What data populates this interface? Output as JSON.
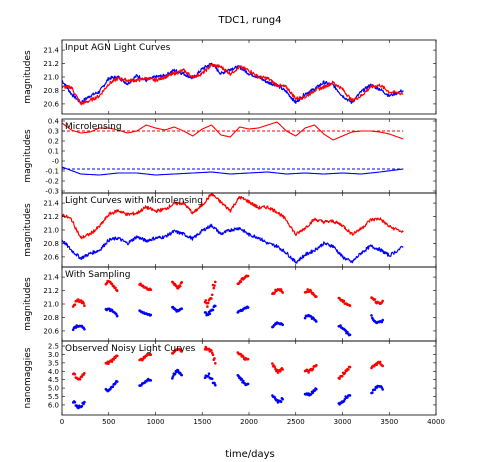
{
  "figure": {
    "title": "TDC1, rung4",
    "xlabel": "time/days"
  },
  "colors": {
    "image_a": "#0000ff",
    "image_b": "#ff0000",
    "axes": "#000000",
    "background": "#ffffff"
  },
  "chart_data": [
    {
      "type": "line",
      "title": "Input AGN Light Curves",
      "ylabel": "magnitudes",
      "xlim": [
        0,
        4000
      ],
      "ylim": [
        21.55,
        20.45
      ],
      "xticks": [],
      "yticks": [
        {
          "v": 20.6,
          "label": "20.6"
        },
        {
          "v": 20.8,
          "label": "20.8"
        },
        {
          "v": 21.0,
          "label": "21.0"
        },
        {
          "v": 21.2,
          "label": "21.2"
        },
        {
          "v": 21.4,
          "label": "21.4"
        }
      ],
      "series": [
        {
          "color": "#0000ff",
          "x": [
            0,
            100,
            200,
            300,
            400,
            500,
            600,
            700,
            800,
            900,
            1000,
            1100,
            1200,
            1300,
            1400,
            1500,
            1600,
            1700,
            1800,
            1900,
            2000,
            2100,
            2200,
            2300,
            2400,
            2500,
            2600,
            2700,
            2800,
            2900,
            3000,
            3100,
            3200,
            3300,
            3400,
            3500,
            3650
          ],
          "y": [
            20.95,
            20.75,
            20.62,
            20.72,
            20.78,
            20.98,
            21.0,
            20.9,
            21.02,
            20.95,
            21.0,
            21.02,
            21.1,
            21.05,
            20.98,
            21.12,
            21.2,
            21.05,
            21.12,
            21.15,
            21.05,
            21.0,
            20.92,
            20.88,
            20.78,
            20.62,
            20.75,
            20.82,
            20.92,
            20.88,
            20.72,
            20.62,
            20.78,
            20.88,
            20.82,
            20.72,
            20.8
          ]
        },
        {
          "color": "#ff0000",
          "x": [
            0,
            100,
            200,
            300,
            400,
            500,
            600,
            700,
            800,
            900,
            1000,
            1100,
            1200,
            1300,
            1400,
            1500,
            1600,
            1700,
            1800,
            1900,
            2000,
            2100,
            2200,
            2300,
            2400,
            2500,
            2600,
            2700,
            2800,
            2900,
            3000,
            3100,
            3200,
            3300,
            3400,
            3500,
            3650
          ],
          "y": [
            20.85,
            20.85,
            20.6,
            20.65,
            20.72,
            20.9,
            20.98,
            20.95,
            20.95,
            20.98,
            20.95,
            21.0,
            21.05,
            21.1,
            21.0,
            21.05,
            21.18,
            21.15,
            21.05,
            21.15,
            21.1,
            21.0,
            20.98,
            20.88,
            20.85,
            20.68,
            20.7,
            20.8,
            20.85,
            20.92,
            20.82,
            20.65,
            20.72,
            20.85,
            20.88,
            20.78,
            20.75
          ]
        }
      ]
    },
    {
      "type": "line",
      "title": "Microlensing",
      "ylabel": "magnitudes",
      "xlim": [
        0,
        4000
      ],
      "ylim": [
        0.42,
        -0.32
      ],
      "xticks": [],
      "yticks": [
        {
          "v": -0.3,
          "label": "-0.3"
        },
        {
          "v": -0.2,
          "label": "-0.2"
        },
        {
          "v": -0.1,
          "label": "-0.1"
        },
        {
          "v": 0.0,
          "label": "-0"
        },
        {
          "v": 0.1,
          "label": "0.1"
        },
        {
          "v": 0.2,
          "label": "0.2"
        },
        {
          "v": 0.3,
          "label": "0.3"
        },
        {
          "v": 0.4,
          "label": "0.4"
        }
      ],
      "series": [
        {
          "color": "#0000ff",
          "x": [
            0,
            200,
            400,
            600,
            800,
            1000,
            1200,
            1400,
            1600,
            1800,
            2000,
            2200,
            2400,
            2600,
            2800,
            3000,
            3200,
            3400,
            3650
          ],
          "y": [
            -0.06,
            -0.13,
            -0.14,
            -0.12,
            -0.12,
            -0.14,
            -0.13,
            -0.12,
            -0.11,
            -0.13,
            -0.12,
            -0.11,
            -0.13,
            -0.12,
            -0.13,
            -0.12,
            -0.13,
            -0.11,
            -0.08
          ]
        },
        {
          "color": "#0000ff",
          "dashed": true,
          "x": [
            0,
            3650
          ],
          "y": [
            -0.08,
            -0.08
          ]
        },
        {
          "color": "#ff0000",
          "x": [
            0,
            100,
            200,
            300,
            400,
            500,
            600,
            700,
            800,
            900,
            1000,
            1100,
            1200,
            1300,
            1400,
            1500,
            1600,
            1700,
            1800,
            1900,
            2000,
            2100,
            2200,
            2300,
            2400,
            2500,
            2600,
            2700,
            2800,
            2900,
            3000,
            3100,
            3200,
            3300,
            3400,
            3500,
            3650
          ],
          "y": [
            0.38,
            0.31,
            0.28,
            0.29,
            0.33,
            0.33,
            0.31,
            0.28,
            0.3,
            0.36,
            0.33,
            0.31,
            0.34,
            0.3,
            0.25,
            0.32,
            0.36,
            0.26,
            0.24,
            0.34,
            0.32,
            0.33,
            0.36,
            0.39,
            0.3,
            0.25,
            0.33,
            0.36,
            0.27,
            0.21,
            0.25,
            0.29,
            0.3,
            0.3,
            0.29,
            0.27,
            0.22
          ]
        },
        {
          "color": "#ff0000",
          "dashed": true,
          "x": [
            0,
            3650
          ],
          "y": [
            0.3,
            0.3
          ]
        }
      ]
    },
    {
      "type": "line",
      "title": "Light Curves with Microlensing",
      "ylabel": "magnitudes",
      "xlim": [
        0,
        4000
      ],
      "ylim": [
        21.55,
        20.45
      ],
      "xticks": [],
      "yticks": [
        {
          "v": 20.6,
          "label": "20.6"
        },
        {
          "v": 20.8,
          "label": "20.8"
        },
        {
          "v": 21.0,
          "label": "21.0"
        },
        {
          "v": 21.2,
          "label": "21.2"
        },
        {
          "v": 21.4,
          "label": "21.4"
        }
      ],
      "series": [
        {
          "color": "#0000ff",
          "x": [
            0,
            100,
            200,
            300,
            400,
            500,
            600,
            700,
            800,
            900,
            1000,
            1100,
            1200,
            1300,
            1400,
            1500,
            1600,
            1700,
            1800,
            1900,
            2000,
            2100,
            2200,
            2300,
            2400,
            2500,
            2600,
            2700,
            2800,
            2900,
            3000,
            3100,
            3200,
            3300,
            3400,
            3500,
            3650
          ],
          "y": [
            20.85,
            20.7,
            20.58,
            20.65,
            20.7,
            20.85,
            20.88,
            20.8,
            20.9,
            20.84,
            20.88,
            20.9,
            20.98,
            20.94,
            20.87,
            20.99,
            21.07,
            20.94,
            21.0,
            21.03,
            20.93,
            20.89,
            20.8,
            20.76,
            20.66,
            20.52,
            20.63,
            20.7,
            20.8,
            20.76,
            20.6,
            20.52,
            20.66,
            20.76,
            20.71,
            20.62,
            20.75
          ]
        },
        {
          "color": "#ff0000",
          "x": [
            0,
            100,
            200,
            300,
            400,
            500,
            600,
            700,
            800,
            900,
            1000,
            1100,
            1200,
            1300,
            1400,
            1500,
            1600,
            1700,
            1800,
            1900,
            2000,
            2100,
            2200,
            2300,
            2400,
            2500,
            2600,
            2700,
            2800,
            2900,
            3000,
            3100,
            3200,
            3300,
            3400,
            3500,
            3650
          ],
          "y": [
            21.23,
            21.16,
            20.88,
            20.94,
            21.05,
            21.23,
            21.29,
            21.23,
            21.25,
            21.34,
            21.28,
            21.31,
            21.39,
            21.4,
            21.25,
            21.37,
            21.54,
            21.41,
            21.29,
            21.49,
            21.42,
            21.33,
            21.34,
            21.27,
            21.15,
            20.93,
            21.03,
            21.16,
            21.12,
            21.13,
            21.07,
            20.94,
            21.02,
            21.15,
            21.17,
            21.05,
            20.97
          ]
        }
      ]
    },
    {
      "type": "scatter",
      "title": "With Sampling",
      "ylabel": "magnitudes",
      "xlim": [
        0,
        4000
      ],
      "ylim": [
        21.55,
        20.45
      ],
      "xticks": [],
      "yticks": [
        {
          "v": 20.6,
          "label": "20.6"
        },
        {
          "v": 20.8,
          "label": "20.8"
        },
        {
          "v": 21.0,
          "label": "21.0"
        },
        {
          "v": 21.2,
          "label": "21.2"
        },
        {
          "v": 21.4,
          "label": "21.4"
        }
      ],
      "seasons": [
        {
          "start": 120,
          "end": 240,
          "blue": [
            20.55,
            20.68
          ],
          "red": [
            20.9,
            21.05
          ]
        },
        {
          "start": 470,
          "end": 590,
          "blue": [
            20.82,
            20.92
          ],
          "red": [
            21.18,
            21.32
          ]
        },
        {
          "start": 830,
          "end": 950,
          "blue": [
            20.84,
            20.9
          ],
          "red": [
            21.22,
            21.3
          ]
        },
        {
          "start": 1180,
          "end": 1280,
          "blue": [
            20.9,
            21.0
          ],
          "red": [
            21.25,
            21.4
          ]
        },
        {
          "start": 1530,
          "end": 1640,
          "blue": [
            20.85,
            21.02
          ],
          "red": [
            21.0,
            21.45
          ]
        },
        {
          "start": 1880,
          "end": 1990,
          "blue": [
            20.88,
            20.95
          ],
          "red": [
            21.3,
            21.42
          ]
        },
        {
          "start": 2250,
          "end": 2360,
          "blue": [
            20.62,
            20.72
          ],
          "red": [
            21.1,
            21.22
          ]
        },
        {
          "start": 2600,
          "end": 2720,
          "blue": [
            20.72,
            20.82
          ],
          "red": [
            21.08,
            21.2
          ]
        },
        {
          "start": 2960,
          "end": 3080,
          "blue": [
            20.55,
            20.68
          ],
          "red": [
            20.98,
            21.08
          ]
        },
        {
          "start": 3310,
          "end": 3430,
          "blue": [
            20.72,
            20.85
          ],
          "red": [
            21.02,
            21.15
          ]
        }
      ]
    },
    {
      "type": "scatter",
      "title": "Observed Noisy Light Curves",
      "ylabel": "nanomaggies",
      "xlim": [
        0,
        4000
      ],
      "ylim": [
        2.2,
        6.6
      ],
      "xticks": [
        {
          "v": 0,
          "label": "0"
        },
        {
          "v": 500,
          "label": "500"
        },
        {
          "v": 1000,
          "label": "1000"
        },
        {
          "v": 1500,
          "label": "1500"
        },
        {
          "v": 2000,
          "label": "2000"
        },
        {
          "v": 2500,
          "label": "2500"
        },
        {
          "v": 3000,
          "label": "3000"
        },
        {
          "v": 3500,
          "label": "3500"
        },
        {
          "v": 4000,
          "label": "4000"
        }
      ],
      "yticks": [
        {
          "v": 2.5,
          "label": "2.5"
        },
        {
          "v": 3.0,
          "label": "3.0"
        },
        {
          "v": 3.5,
          "label": "3.5"
        },
        {
          "v": 4.0,
          "label": "4.0"
        },
        {
          "v": 4.5,
          "label": "4.5"
        },
        {
          "v": 5.0,
          "label": "5.0"
        },
        {
          "v": 5.5,
          "label": "5.5"
        },
        {
          "v": 6.0,
          "label": "6.0"
        }
      ],
      "seasons": [
        {
          "start": 120,
          "end": 240,
          "blue": [
            5.4,
            6.1
          ],
          "red": [
            3.8,
            4.4
          ]
        },
        {
          "start": 470,
          "end": 590,
          "blue": [
            4.5,
            5.1
          ],
          "red": [
            3.0,
            3.5
          ]
        },
        {
          "start": 830,
          "end": 950,
          "blue": [
            4.5,
            4.9
          ],
          "red": [
            3.0,
            3.4
          ]
        },
        {
          "start": 1180,
          "end": 1280,
          "blue": [
            4.0,
            4.6
          ],
          "red": [
            2.7,
            3.1
          ]
        },
        {
          "start": 1530,
          "end": 1640,
          "blue": [
            4.2,
            5.0
          ],
          "red": [
            2.6,
            3.6
          ]
        },
        {
          "start": 1880,
          "end": 1990,
          "blue": [
            4.3,
            4.8
          ],
          "red": [
            2.9,
            3.3
          ]
        },
        {
          "start": 2250,
          "end": 2360,
          "blue": [
            5.2,
            5.8
          ],
          "red": [
            3.4,
            4.0
          ]
        },
        {
          "start": 2600,
          "end": 2720,
          "blue": [
            4.9,
            5.4
          ],
          "red": [
            3.5,
            4.0
          ]
        },
        {
          "start": 2960,
          "end": 3080,
          "blue": [
            5.4,
            6.0
          ],
          "red": [
            3.8,
            4.4
          ]
        },
        {
          "start": 3310,
          "end": 3430,
          "blue": [
            4.9,
            5.4
          ],
          "red": [
            3.5,
            4.0
          ]
        }
      ]
    }
  ]
}
